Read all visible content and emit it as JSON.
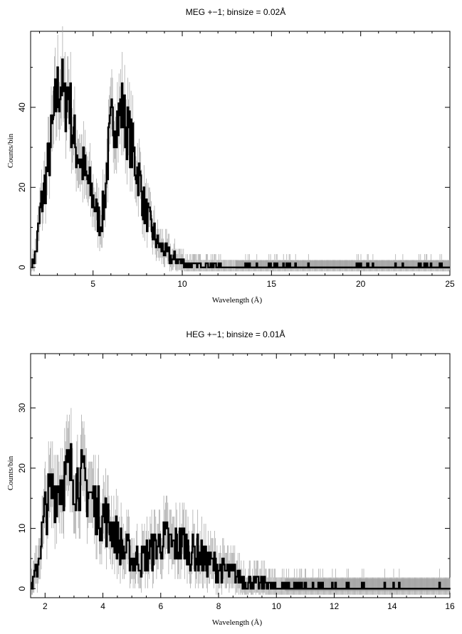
{
  "chart_data": [
    {
      "type": "line",
      "title": "MEG +−1; binsize = 0.02Å",
      "xlabel": "Wavelength (Å)",
      "ylabel": "Counts/bin",
      "xlim": [
        1.5,
        25
      ],
      "ylim": [
        -2,
        59
      ],
      "xticks": [
        5,
        10,
        15,
        20,
        25
      ],
      "yticks": [
        0,
        20,
        40
      ],
      "xtick_labels": [
        "5",
        "10",
        "15",
        "20",
        "25"
      ],
      "ytick_labels": [
        "0",
        "20",
        "40"
      ],
      "grid": false,
      "legend": "none",
      "series": [
        {
          "style": "histogram",
          "color": "#000000",
          "x": [
            1.6,
            1.8,
            2.0,
            2.2,
            2.4,
            2.6,
            2.8,
            3.0,
            3.2,
            3.4,
            3.6,
            3.8,
            4.0,
            4.2,
            4.4,
            4.6,
            4.8,
            5.0,
            5.2,
            5.4,
            5.6,
            5.8,
            6.0,
            6.2,
            6.4,
            6.6,
            6.8,
            7.0,
            7.2,
            7.4,
            7.6,
            7.8,
            8.0,
            8.2,
            8.4,
            8.6,
            8.8,
            9.0,
            9.2,
            9.4,
            9.6,
            9.8,
            10.0,
            10.2,
            10.4,
            10.6,
            10.8,
            11.0,
            11.5,
            12.0,
            12.5,
            13.0,
            14.0,
            15.0,
            16.0,
            17.0,
            18.0,
            19.0,
            20.0,
            21.0,
            22.0,
            23.0,
            24.0,
            25.0
          ],
          "values": [
            1,
            4,
            13,
            18,
            24,
            30,
            38,
            44,
            47,
            40,
            45,
            35,
            30,
            28,
            25,
            22,
            20,
            17,
            13,
            11,
            16,
            27,
            35,
            38,
            37,
            40,
            36,
            33,
            29,
            25,
            22,
            16,
            13,
            10,
            8,
            6,
            5,
            4,
            3,
            2,
            2,
            1.5,
            1,
            1,
            0.8,
            0.6,
            0.4,
            0.3,
            0.2,
            0.2,
            0.1,
            0.1,
            0.1,
            0.1,
            0.1,
            0.05,
            0.05,
            0.05,
            0.05,
            0.05,
            0.05,
            0.05,
            0.05,
            0
          ]
        }
      ]
    },
    {
      "type": "line",
      "title": "HEG +−1; binsize = 0.01Å",
      "xlabel": "Wavelength (Å)",
      "ylabel": "Counts/bin",
      "xlim": [
        1.5,
        16
      ],
      "ylim": [
        -1.5,
        39
      ],
      "xticks": [
        2,
        4,
        6,
        8,
        10,
        12,
        14,
        16
      ],
      "yticks": [
        0,
        10,
        20,
        30
      ],
      "xtick_labels": [
        "2",
        "4",
        "6",
        "8",
        "10",
        "12",
        "14",
        "16"
      ],
      "ytick_labels": [
        "0",
        "10",
        "20",
        "30"
      ],
      "grid": false,
      "legend": "none",
      "series": [
        {
          "style": "histogram",
          "color": "#000000",
          "x": [
            1.6,
            1.8,
            2.0,
            2.2,
            2.4,
            2.6,
            2.8,
            3.0,
            3.2,
            3.4,
            3.6,
            3.8,
            4.0,
            4.2,
            4.4,
            4.6,
            4.8,
            5.0,
            5.2,
            5.4,
            5.6,
            5.8,
            6.0,
            6.2,
            6.4,
            6.6,
            6.8,
            7.0,
            7.2,
            7.4,
            7.6,
            7.8,
            8.0,
            8.2,
            8.4,
            8.6,
            8.8,
            9.0,
            9.2,
            9.4,
            9.6,
            9.8,
            10.0,
            10.2,
            10.5,
            11.0,
            11.5,
            12.0,
            12.5,
            13.0,
            14.0,
            15.0,
            16.0
          ],
          "values": [
            1,
            6,
            13,
            16,
            17,
            18,
            19,
            19,
            18,
            17,
            15,
            13,
            12,
            11,
            9,
            7,
            6,
            5,
            5,
            5,
            6,
            7,
            8,
            8,
            7,
            7,
            8,
            6,
            6,
            5,
            4.5,
            4,
            3.5,
            3,
            2.5,
            2,
            1.5,
            1.2,
            1,
            0.8,
            0.7,
            0.5,
            0.4,
            0.3,
            0.2,
            0.15,
            0.1,
            0.1,
            0.05,
            0.05,
            0.05,
            0.05,
            0
          ]
        }
      ]
    }
  ]
}
